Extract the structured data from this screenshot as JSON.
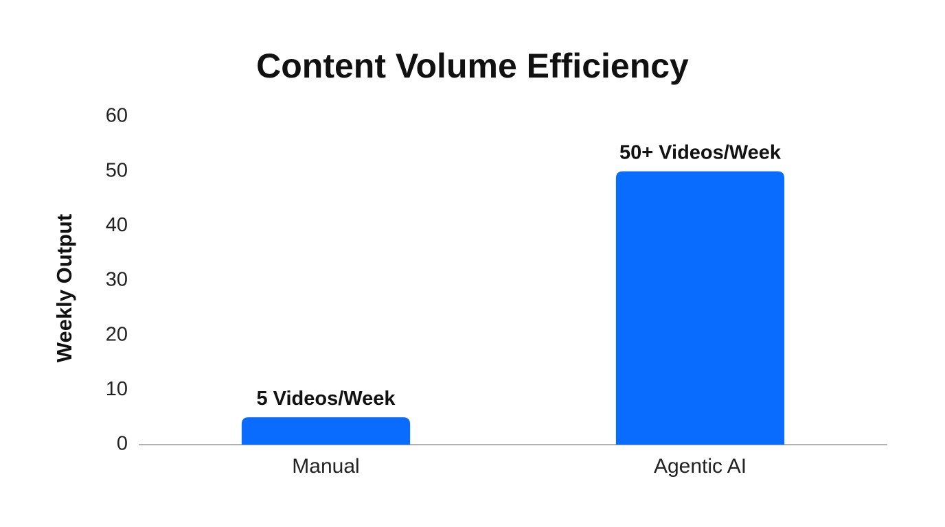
{
  "chart_data": {
    "type": "bar",
    "title": "Content Volume Efficiency",
    "y_label": "Weekly Output",
    "categories": [
      "Manual",
      "Agentic AI"
    ],
    "values": [
      5,
      50
    ],
    "value_labels": [
      "5 Videos/Week",
      "50+ Videos/Week"
    ],
    "color": "#0a6cff",
    "ylim": [
      0,
      60
    ],
    "yticks": [
      0,
      10,
      20,
      30,
      40,
      50,
      60
    ],
    "grid": false
  }
}
